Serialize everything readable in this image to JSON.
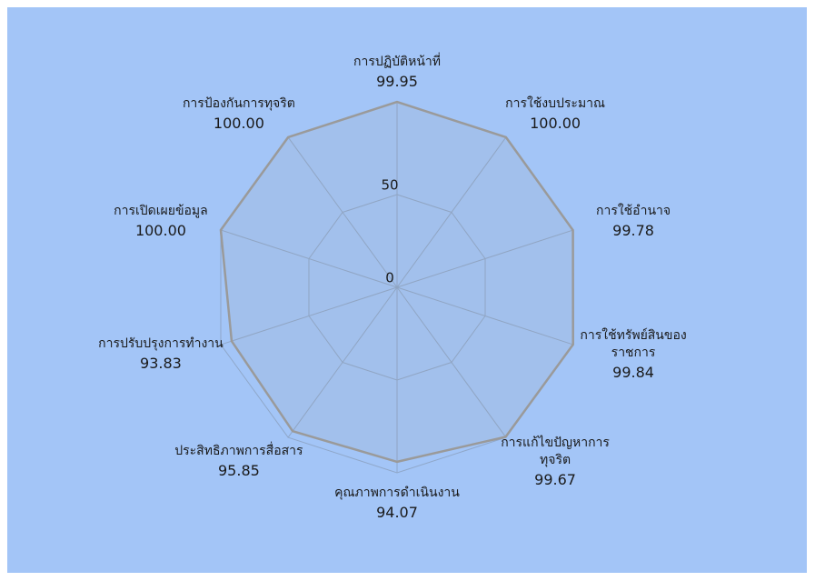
{
  "chart_data": {
    "type": "radar",
    "categories": [
      "การปฏิบัติหน้าที่",
      "การใช้งบประมาณ",
      "การใช้อำนาจ",
      "การใช้ทรัพย์สินของราชการ",
      "การแก้ไขปัญหาการทุจริต",
      "คุณภาพการดำเนินงาน",
      "ประสิทธิภาพการสื่อสาร",
      "การปรับปรุงการทำงาน",
      "การเปิดเผยข้อมูล",
      "การป้องกันการทุจริต"
    ],
    "values": [
      99.95,
      100,
      99.78,
      99.84,
      99.67,
      94.07,
      95.85,
      93.83,
      100,
      100
    ],
    "value_labels": [
      "99.95",
      "100.00",
      "99.78",
      "99.84",
      "99.67",
      "94.07",
      "95.85",
      "93.83",
      "100.00",
      "100.00"
    ],
    "color": "#9a9a9a",
    "ylim": [
      0,
      100
    ],
    "yticks": [
      0,
      50
    ],
    "grid": true
  }
}
